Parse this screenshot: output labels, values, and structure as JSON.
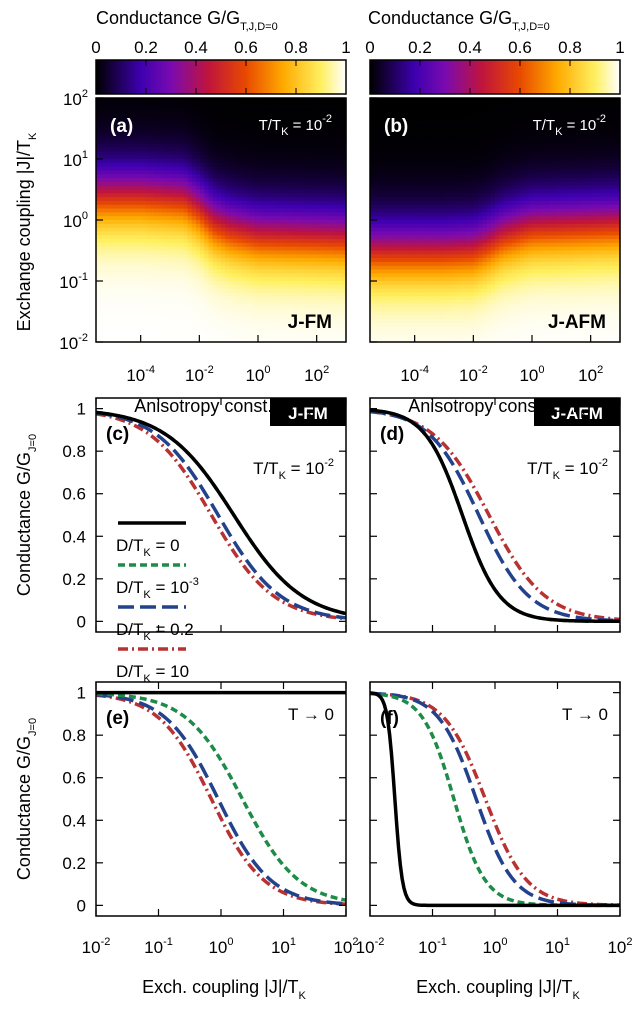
{
  "colors": {
    "zero_d": "#000000",
    "d_1e-3": "#1e8c48",
    "d_0_2": "#22428c",
    "d_10": "#b83232"
  },
  "colorbar": {
    "title_main": "Conductance G/G",
    "title_sub": "T,J,D=0",
    "ticks": [
      "0",
      "0.2",
      "0.4",
      "0.6",
      "0.8",
      "1"
    ]
  },
  "heatmaps": [
    {
      "panel": "(a)",
      "temp_main": "T/T",
      "temp_sub": "K",
      "temp_eq": " = 10",
      "temp_exp": "-2",
      "badge": "J-FM"
    },
    {
      "panel": "(b)",
      "temp_main": "T/T",
      "temp_sub": "K",
      "temp_eq": " = 10",
      "temp_exp": "-2",
      "badge": "J-AFM"
    }
  ],
  "axes_text": {
    "heat_ylabel_main": "Exchange coupling |J|/T",
    "heat_ylabel_sub": "K",
    "heat_xlabel_main": "Anisotropy const. D/T",
    "heat_xlabel_sub": "K",
    "line_ylabel_main": "Conductance G/G",
    "line_ylabel_sub": "J=0",
    "line_xlabel_main": "Exch. coupling |J|/T",
    "line_xlabel_sub": "K",
    "heat_x_ticks": [
      {
        "b": "10",
        "e": "-4"
      },
      {
        "b": "10",
        "e": "-2"
      },
      {
        "b": "10",
        "e": "0"
      },
      {
        "b": "10",
        "e": "2"
      }
    ],
    "heat_y_ticks": [
      {
        "b": "10",
        "e": "2"
      },
      {
        "b": "10",
        "e": "1"
      },
      {
        "b": "10",
        "e": "0"
      },
      {
        "b": "10",
        "e": "-1"
      },
      {
        "b": "10",
        "e": "-2"
      }
    ],
    "line_y_ticks": [
      "1",
      "0.8",
      "0.6",
      "0.4",
      "0.2",
      "0"
    ],
    "line_x_ticks": [
      {
        "b": "10",
        "e": "-2"
      },
      {
        "b": "10",
        "e": "-1"
      },
      {
        "b": "10",
        "e": "0"
      },
      {
        "b": "10",
        "e": "1"
      },
      {
        "b": "10",
        "e": "2"
      }
    ]
  },
  "legend": [
    {
      "main": "D/T",
      "sub": "K",
      "eq": " = 0",
      "exp": ""
    },
    {
      "main": "D/T",
      "sub": "K",
      "eq": " = 10",
      "exp": "-3"
    },
    {
      "main": "D/T",
      "sub": "K",
      "eq": " = 0.2",
      "exp": ""
    },
    {
      "main": "D/T",
      "sub": "K",
      "eq": " = 10",
      "exp": ""
    }
  ],
  "line_panels": [
    {
      "panel": "(c)",
      "badge": "J-FM",
      "temp": {
        "main": "T/T",
        "sub": "K",
        "eq": " = 10",
        "exp": "-2"
      }
    },
    {
      "panel": "(d)",
      "badge": "J-AFM",
      "temp": {
        "main": "T/T",
        "sub": "K",
        "eq": " = 10",
        "exp": "-2"
      }
    },
    {
      "panel": "(e)",
      "badge": "",
      "temp": {
        "main": "T",
        "sub": "",
        "eq": " → 0",
        "exp": ""
      }
    },
    {
      "panel": "(f)",
      "badge": "",
      "temp": {
        "main": "T",
        "sub": "",
        "eq": " → 0",
        "exp": ""
      }
    }
  ],
  "chart_data": [
    {
      "type": "heatmap",
      "panel": "(a)",
      "xlabel": "Anisotropy const. D/T_K",
      "ylabel": "Exchange coupling |J|/T_K",
      "x_scale": "log",
      "y_scale": "log",
      "xlim": [
        3e-06,
        1000
      ],
      "ylim": [
        0.01,
        100
      ],
      "color_range": [
        0,
        1
      ],
      "half_conductance_J": [
        [
          3e-06,
          2.5
        ],
        [
          0.0001,
          2.5
        ],
        [
          0.003,
          2.2
        ],
        [
          0.01,
          1.5
        ],
        [
          0.03,
          0.9
        ],
        [
          0.1,
          0.7
        ],
        [
          1,
          0.55
        ],
        [
          1000,
          0.5
        ]
      ]
    },
    {
      "type": "heatmap",
      "panel": "(b)",
      "xlabel": "Anisotropy const. D/T_K",
      "ylabel": "Exchange coupling |J|/T_K",
      "x_scale": "log",
      "y_scale": "log",
      "xlim": [
        3e-06,
        1000
      ],
      "ylim": [
        0.01,
        100
      ],
      "color_range": [
        0,
        1
      ],
      "half_conductance_J": [
        [
          3e-06,
          0.3
        ],
        [
          0.001,
          0.3
        ],
        [
          0.01,
          0.32
        ],
        [
          0.03,
          0.4
        ],
        [
          0.1,
          0.55
        ],
        [
          1,
          0.75
        ],
        [
          1000,
          0.85
        ]
      ]
    },
    {
      "type": "line",
      "panel": "(c)",
      "x_scale": "log",
      "xlim": [
        0.01,
        100
      ],
      "ylim": [
        -0.05,
        1.05
      ],
      "series": [
        {
          "name": "D/T_K = 0",
          "J_half": 1.6,
          "width": 0.55
        },
        {
          "name": "D/T_K = 10^-3",
          "J_half": 1.6,
          "width": 0.55
        },
        {
          "name": "D/T_K = 0.2",
          "J_half": 0.9,
          "width": 0.5
        },
        {
          "name": "D/T_K = 10",
          "J_half": 0.7,
          "width": 0.5
        }
      ]
    },
    {
      "type": "line",
      "panel": "(d)",
      "x_scale": "log",
      "xlim": [
        0.01,
        100
      ],
      "ylim": [
        -0.05,
        1.05
      ],
      "series": [
        {
          "name": "D/T_K = 0",
          "J_half": 0.3,
          "width": 0.3
        },
        {
          "name": "D/T_K = 10^-3",
          "J_half": 0.3,
          "width": 0.3
        },
        {
          "name": "D/T_K = 0.2",
          "J_half": 0.55,
          "width": 0.4
        },
        {
          "name": "D/T_K = 10",
          "J_half": 0.8,
          "width": 0.45
        }
      ]
    },
    {
      "type": "line",
      "panel": "(e)",
      "x_scale": "log",
      "xlim": [
        0.01,
        100
      ],
      "ylim": [
        -0.05,
        1.05
      ],
      "series": [
        {
          "name": "D/T_K = 0",
          "J_half": null,
          "constant": 1.0
        },
        {
          "name": "D/T_K = 10^-3",
          "J_half": 2.2,
          "width": 0.45
        },
        {
          "name": "D/T_K = 0.2",
          "J_half": 0.9,
          "width": 0.42
        },
        {
          "name": "D/T_K = 10",
          "J_half": 0.7,
          "width": 0.42
        }
      ]
    },
    {
      "type": "line",
      "panel": "(f)",
      "x_scale": "log",
      "xlim": [
        0.01,
        100
      ],
      "ylim": [
        -0.05,
        1.05
      ],
      "series": [
        {
          "name": "D/T_K = 0",
          "J_half": 0.025,
          "width": 0.06
        },
        {
          "name": "D/T_K = 10^-3",
          "J_half": 0.22,
          "width": 0.25
        },
        {
          "name": "D/T_K = 0.2",
          "J_half": 0.5,
          "width": 0.3
        },
        {
          "name": "D/T_K = 10",
          "J_half": 0.7,
          "width": 0.33
        }
      ]
    }
  ]
}
